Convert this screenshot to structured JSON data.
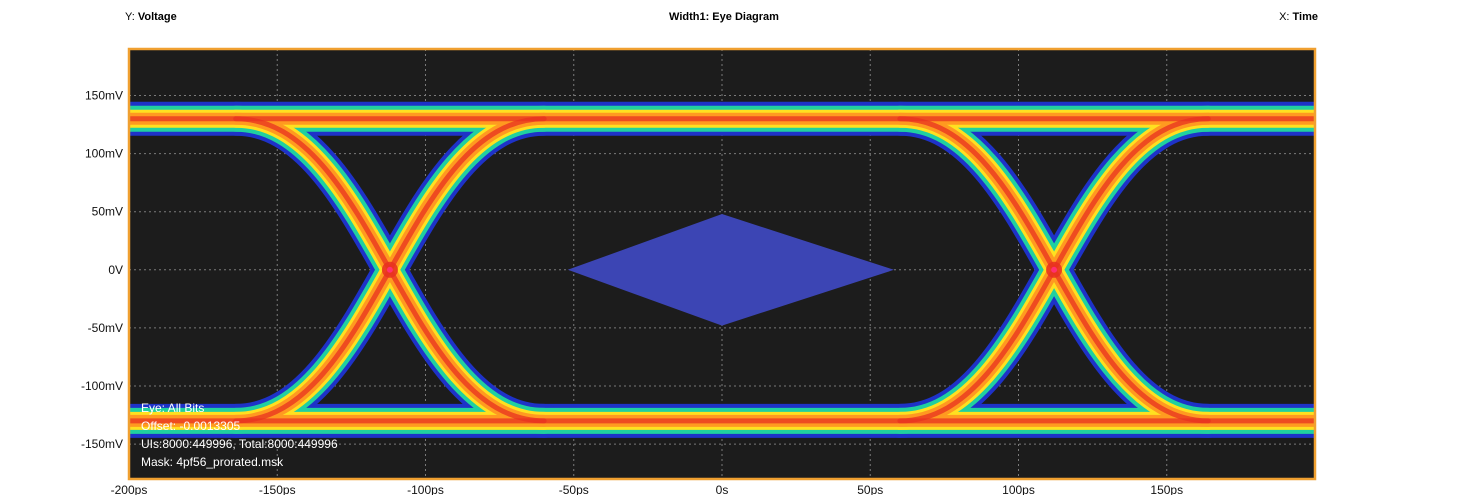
{
  "header": {
    "y_prefix": "Y: ",
    "y_axis": "Voltage",
    "title": "Width1: Eye Diagram",
    "x_prefix": "X: ",
    "x_axis": "Time"
  },
  "info": {
    "eye": "Eye: All Bits",
    "offset": "Offset: -0.0013305",
    "uis": "UIs:8000:449996, Total:8000:449996",
    "mask": "Mask: 4pf56_prorated.msk"
  },
  "colors": {
    "background": "#1c1c1c",
    "frame": "#f0a030",
    "mask": "#3c45b4",
    "density_low": "#1e32c8",
    "density_mid": "#20d0a0",
    "density_high": "#ffe020",
    "density_peak": "#e83020"
  },
  "chart_data": {
    "type": "eye-diagram",
    "title": "Width1: Eye Diagram",
    "xlabel": "Time",
    "ylabel": "Voltage",
    "x_unit": "ps",
    "y_unit": "mV",
    "xlim": [
      -200,
      200
    ],
    "ylim": [
      -180,
      190
    ],
    "x_ticks": [
      -200,
      -150,
      -100,
      -50,
      0,
      50,
      100,
      150
    ],
    "x_tick_labels": [
      "-200ps",
      "-150ps",
      "-100ps",
      "-50ps",
      "0s",
      "50ps",
      "100ps",
      "150ps"
    ],
    "y_ticks": [
      150,
      100,
      50,
      0,
      -50,
      -100,
      -150
    ],
    "y_tick_labels": [
      "150mV",
      "100mV",
      "50mV",
      "0V",
      "-50mV",
      "-100mV",
      "-150mV"
    ],
    "grid": true,
    "high_level": 130,
    "low_level": -130,
    "crossings": [
      -112,
      112
    ],
    "crossing_level": 0,
    "mask": {
      "shape": "diamond",
      "points": [
        [
          -52,
          0
        ],
        [
          0,
          48
        ],
        [
          58,
          0
        ],
        [
          0,
          -48
        ]
      ]
    }
  }
}
